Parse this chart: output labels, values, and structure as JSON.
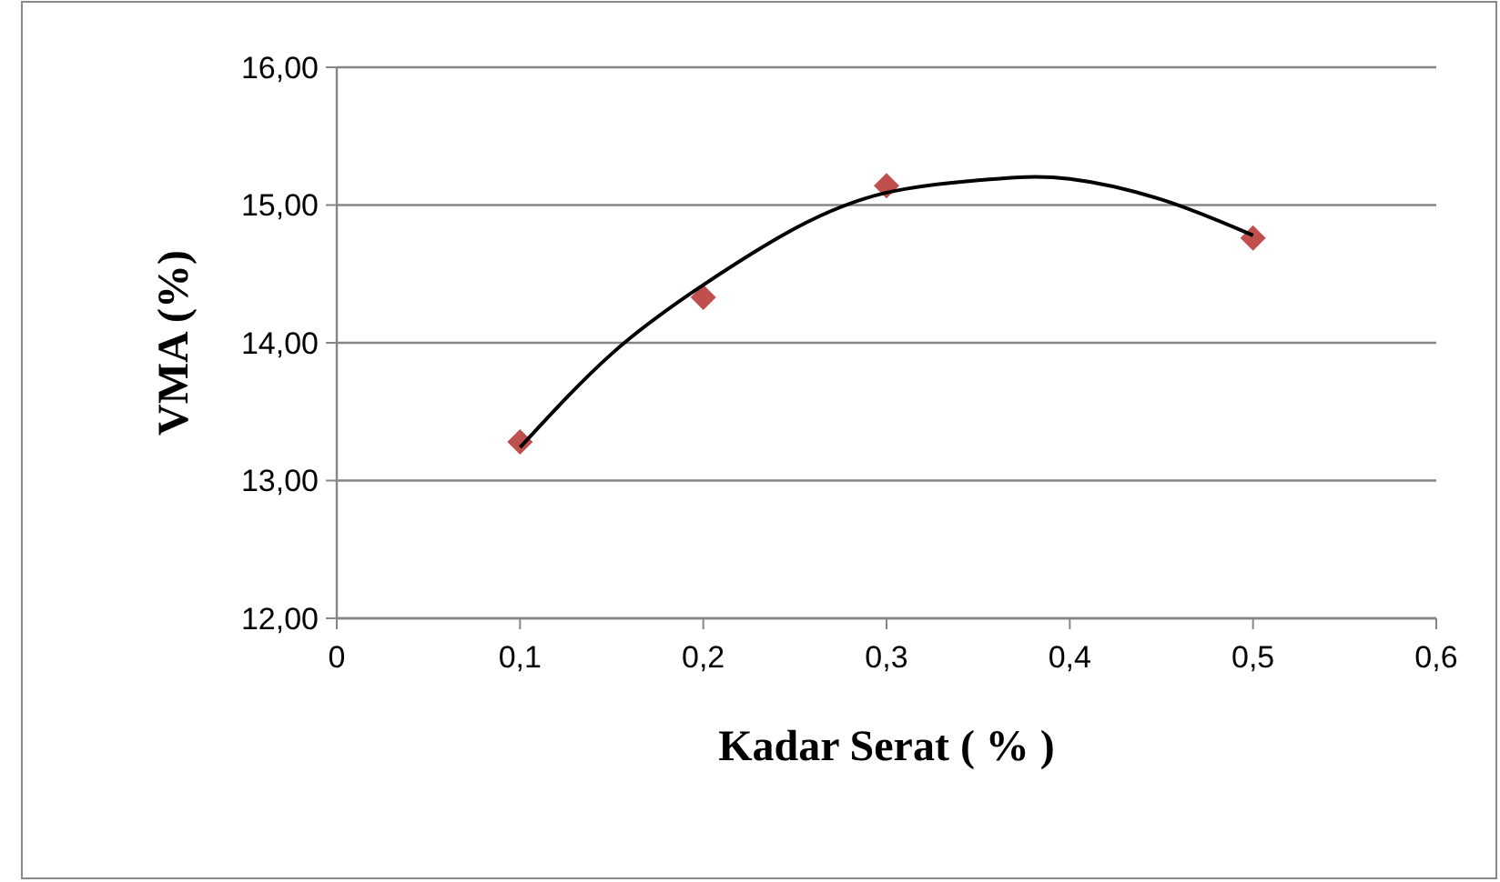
{
  "chart_data": {
    "type": "scatter",
    "xlabel": "Kadar Serat ( % )",
    "ylabel": "VMA (%)",
    "xlim": [
      0,
      0.6
    ],
    "xticks": [
      0,
      {
        "value": 0.1,
        "label": "0,1"
      },
      {
        "value": 0.2,
        "label": "0,2"
      },
      {
        "value": 0.3,
        "label": "0,3"
      },
      {
        "value": 0.4,
        "label": "0,4"
      },
      {
        "value": 0.5,
        "label": "0,5"
      },
      {
        "value": 0.6,
        "label": "0,6"
      }
    ],
    "ylim": [
      12,
      16
    ],
    "yticks": [
      {
        "value": 12,
        "label": "12,00"
      },
      {
        "value": 13,
        "label": "13,00"
      },
      {
        "value": 14,
        "label": "14,00"
      },
      {
        "value": 15,
        "label": "15,00"
      },
      {
        "value": 16,
        "label": "16,00"
      }
    ],
    "grid": "y",
    "marker": "diamond",
    "series": [
      {
        "color": "#c0504d",
        "x": [
          0.1,
          0.2,
          0.3,
          0.5
        ],
        "values": [
          13.28,
          14.33,
          15.14,
          14.76
        ]
      },
      {
        "type": "line",
        "color": "#000000",
        "marker": "none",
        "x": [
          0.1,
          0.15,
          0.2,
          0.25,
          0.3,
          0.35,
          0.37,
          0.4,
          0.45,
          0.5
        ],
        "values": [
          13.24,
          13.92,
          14.42,
          14.83,
          15.09,
          15.18,
          15.2,
          15.19,
          15.04,
          14.78
        ]
      }
    ]
  }
}
